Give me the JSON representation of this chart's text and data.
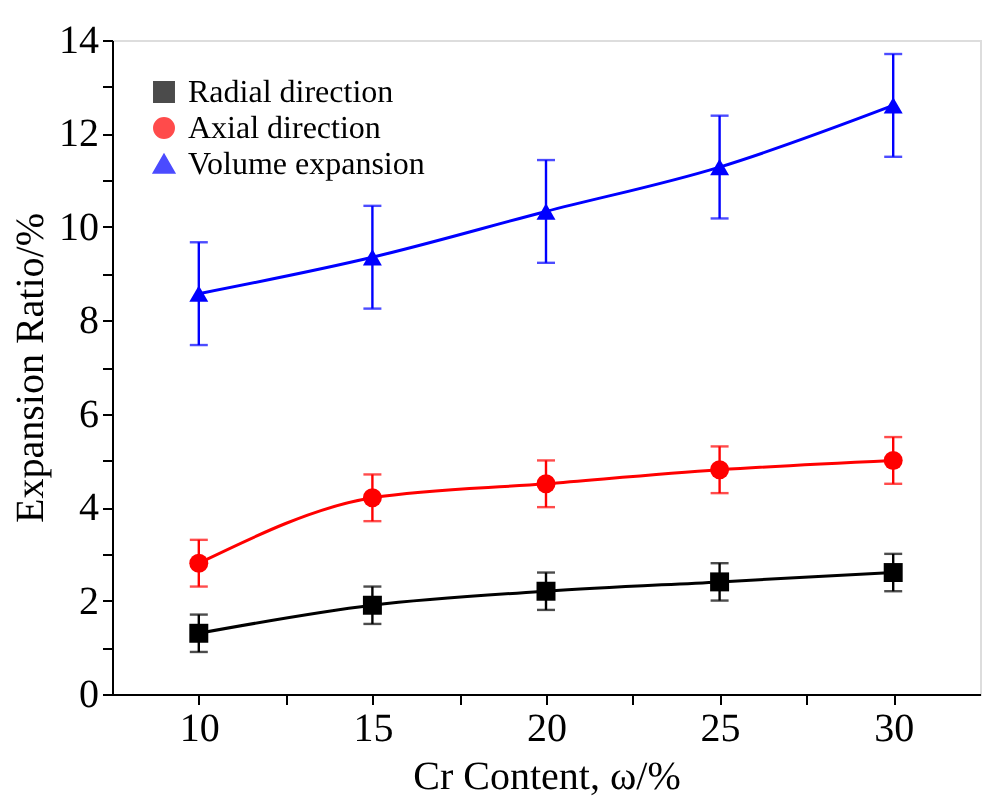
{
  "chart_data": {
    "type": "line",
    "xlabel": "Cr Content, ω/%",
    "ylabel": "Expansion Ratio/%",
    "x": [
      10,
      15,
      20,
      25,
      30
    ],
    "series": [
      {
        "name": "Radial direction",
        "color": "#000000",
        "marker": "square",
        "values": [
          1.3,
          1.9,
          2.2,
          2.4,
          2.6
        ],
        "errors": [
          0.4,
          0.4,
          0.4,
          0.4,
          0.4
        ]
      },
      {
        "name": "Axial direction",
        "color": "#ff0000",
        "marker": "circle",
        "values": [
          2.8,
          4.2,
          4.5,
          4.8,
          5.0
        ],
        "errors": [
          0.5,
          0.5,
          0.5,
          0.5,
          0.5
        ]
      },
      {
        "name": "Volume expansion",
        "color": "#0000ff",
        "marker": "triangle",
        "values": [
          8.57,
          9.35,
          10.33,
          11.28,
          12.6
        ],
        "errors": [
          1.1,
          1.1,
          1.1,
          1.1,
          1.1
        ]
      }
    ],
    "xlim": [
      7.5,
      32.5
    ],
    "xticks": [
      10,
      {
        "value": 12.5,
        "label": null
      },
      15,
      {
        "value": 17.5,
        "label": null
      },
      20,
      {
        "value": 22.5,
        "label": null
      },
      25,
      {
        "value": 27.5,
        "label": null
      },
      30
    ],
    "ylim": [
      0,
      14
    ],
    "yticks": [
      0,
      {
        "value": 1,
        "label": null
      },
      2,
      {
        "value": 3,
        "label": null
      },
      4,
      {
        "value": 5,
        "label": null
      },
      6,
      {
        "value": 7,
        "label": null
      },
      8,
      {
        "value": 9,
        "label": null
      },
      10,
      {
        "value": 11,
        "label": null
      },
      12,
      {
        "value": 13,
        "label": null
      },
      14
    ],
    "grid": false,
    "legend": "top left",
    "line_style": "solid"
  }
}
